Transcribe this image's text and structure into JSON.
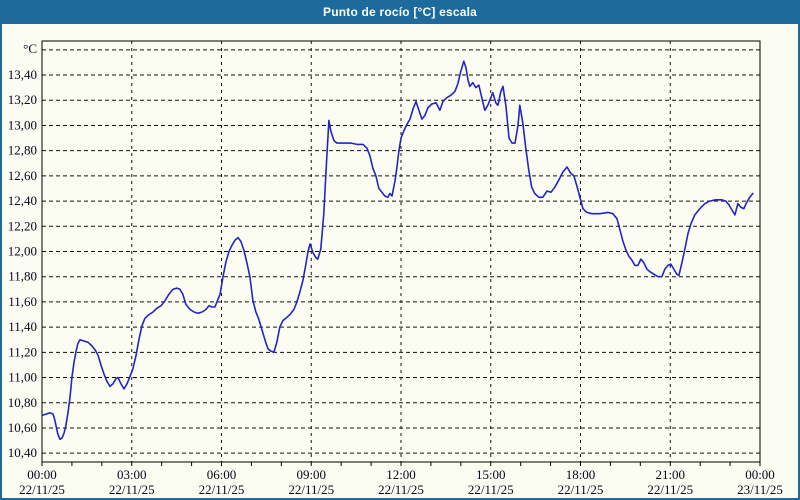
{
  "window": {
    "title": "Punto de rocío [°C] escala"
  },
  "colors": {
    "titlebar_bg": "#1d6b9d",
    "titlebar_text": "#ffffff",
    "page_bg": "#fcfdf2",
    "border": "#1d6b9d",
    "line": "#2424c3",
    "grid": "#111111",
    "axis": "#000000",
    "tick_label": "#05051e"
  },
  "chart_data": {
    "type": "line",
    "title": "Punto de rocío [°C] escala",
    "ylabel": "°C",
    "xlabel": "",
    "grid": true,
    "legend": false,
    "xlim_hours": [
      0,
      24
    ],
    "ylim": [
      10.33,
      13.67
    ],
    "y_tick_values": [
      10.4,
      10.6,
      10.8,
      11.0,
      11.2,
      11.4,
      11.6,
      11.8,
      12.0,
      12.2,
      12.4,
      12.6,
      12.8,
      13.0,
      13.2,
      13.4,
      13.6
    ],
    "y_tick_labels": [
      "10,40",
      "10,60",
      "10,80",
      "11,00",
      "11,20",
      "11,40",
      "11,60",
      "11,80",
      "12,00",
      "12,20",
      "12,40",
      "12,60",
      "12,80",
      "13,00",
      "13,20",
      "13,40",
      ""
    ],
    "x_ticks": [
      {
        "t": 0,
        "time": "00:00",
        "date": "22/11/25"
      },
      {
        "t": 3,
        "time": "03:00",
        "date": "22/11/25"
      },
      {
        "t": 6,
        "time": "06:00",
        "date": "22/11/25"
      },
      {
        "t": 9,
        "time": "09:00",
        "date": "22/11/25"
      },
      {
        "t": 12,
        "time": "12:00",
        "date": "22/11/25"
      },
      {
        "t": 15,
        "time": "15:00",
        "date": "22/11/25"
      },
      {
        "t": 18,
        "time": "18:00",
        "date": "22/11/25"
      },
      {
        "t": 21,
        "time": "21:00",
        "date": "22/11/25"
      },
      {
        "t": 24,
        "time": "00:00",
        "date": "23/11/25"
      }
    ],
    "x_minor_tick_every_hours": 1,
    "series": [
      {
        "name": "Punto de rocío [°C]",
        "points": [
          [
            0.0,
            10.7
          ],
          [
            0.13,
            10.71
          ],
          [
            0.27,
            10.72
          ],
          [
            0.37,
            10.71
          ],
          [
            0.43,
            10.66
          ],
          [
            0.53,
            10.55
          ],
          [
            0.6,
            10.51
          ],
          [
            0.67,
            10.52
          ],
          [
            0.74,
            10.56
          ],
          [
            0.8,
            10.62
          ],
          [
            0.87,
            10.72
          ],
          [
            0.94,
            10.85
          ],
          [
            1.0,
            11.0
          ],
          [
            1.07,
            11.12
          ],
          [
            1.14,
            11.21
          ],
          [
            1.2,
            11.27
          ],
          [
            1.27,
            11.3
          ],
          [
            1.4,
            11.29
          ],
          [
            1.54,
            11.28
          ],
          [
            1.67,
            11.25
          ],
          [
            1.77,
            11.22
          ],
          [
            1.87,
            11.18
          ],
          [
            1.97,
            11.1
          ],
          [
            2.07,
            11.03
          ],
          [
            2.17,
            10.97
          ],
          [
            2.27,
            10.93
          ],
          [
            2.37,
            10.95
          ],
          [
            2.47,
            10.99
          ],
          [
            2.54,
            11.0
          ],
          [
            2.64,
            10.95
          ],
          [
            2.74,
            10.91
          ],
          [
            2.84,
            10.95
          ],
          [
            2.94,
            11.01
          ],
          [
            3.04,
            11.07
          ],
          [
            3.14,
            11.17
          ],
          [
            3.24,
            11.3
          ],
          [
            3.34,
            11.41
          ],
          [
            3.44,
            11.47
          ],
          [
            3.58,
            11.5
          ],
          [
            3.71,
            11.52
          ],
          [
            3.84,
            11.55
          ],
          [
            3.98,
            11.57
          ],
          [
            4.11,
            11.61
          ],
          [
            4.24,
            11.66
          ],
          [
            4.38,
            11.7
          ],
          [
            4.51,
            11.71
          ],
          [
            4.61,
            11.7
          ],
          [
            4.71,
            11.66
          ],
          [
            4.81,
            11.58
          ],
          [
            4.95,
            11.54
          ],
          [
            5.08,
            11.52
          ],
          [
            5.21,
            11.51
          ],
          [
            5.35,
            11.52
          ],
          [
            5.48,
            11.54
          ],
          [
            5.58,
            11.57
          ],
          [
            5.68,
            11.56
          ],
          [
            5.78,
            11.56
          ],
          [
            5.88,
            11.62
          ],
          [
            5.95,
            11.66
          ],
          [
            6.05,
            11.8
          ],
          [
            6.15,
            11.92
          ],
          [
            6.25,
            12.0
          ],
          [
            6.35,
            12.05
          ],
          [
            6.45,
            12.09
          ],
          [
            6.55,
            12.11
          ],
          [
            6.65,
            12.08
          ],
          [
            6.75,
            12.01
          ],
          [
            6.85,
            11.91
          ],
          [
            6.95,
            11.8
          ],
          [
            7.05,
            11.61
          ],
          [
            7.15,
            11.52
          ],
          [
            7.25,
            11.46
          ],
          [
            7.35,
            11.38
          ],
          [
            7.45,
            11.3
          ],
          [
            7.55,
            11.23
          ],
          [
            7.65,
            11.21
          ],
          [
            7.75,
            11.2
          ],
          [
            7.85,
            11.28
          ],
          [
            7.95,
            11.4
          ],
          [
            8.05,
            11.45
          ],
          [
            8.15,
            11.47
          ],
          [
            8.29,
            11.5
          ],
          [
            8.42,
            11.54
          ],
          [
            8.52,
            11.6
          ],
          [
            8.62,
            11.68
          ],
          [
            8.72,
            11.77
          ],
          [
            8.82,
            11.9
          ],
          [
            8.89,
            12.0
          ],
          [
            8.96,
            12.06
          ],
          [
            9.06,
            11.99
          ],
          [
            9.16,
            11.95
          ],
          [
            9.22,
            11.94
          ],
          [
            9.32,
            12.02
          ],
          [
            9.42,
            12.3
          ],
          [
            9.52,
            12.75
          ],
          [
            9.59,
            13.04
          ],
          [
            9.66,
            12.95
          ],
          [
            9.76,
            12.88
          ],
          [
            9.86,
            12.86
          ],
          [
            10.0,
            12.86
          ],
          [
            10.13,
            12.86
          ],
          [
            10.33,
            12.86
          ],
          [
            10.53,
            12.85
          ],
          [
            10.73,
            12.85
          ],
          [
            10.86,
            12.82
          ],
          [
            10.96,
            12.76
          ],
          [
            11.06,
            12.66
          ],
          [
            11.16,
            12.6
          ],
          [
            11.26,
            12.5
          ],
          [
            11.36,
            12.47
          ],
          [
            11.46,
            12.44
          ],
          [
            11.56,
            12.43
          ],
          [
            11.63,
            12.46
          ],
          [
            11.7,
            12.44
          ],
          [
            11.8,
            12.56
          ],
          [
            11.86,
            12.66
          ],
          [
            11.93,
            12.8
          ],
          [
            12.0,
            12.9
          ],
          [
            12.1,
            12.96
          ],
          [
            12.2,
            13.01
          ],
          [
            12.3,
            13.05
          ],
          [
            12.4,
            13.13
          ],
          [
            12.5,
            13.19
          ],
          [
            12.6,
            13.12
          ],
          [
            12.7,
            13.05
          ],
          [
            12.8,
            13.08
          ],
          [
            12.9,
            13.14
          ],
          [
            13.03,
            13.17
          ],
          [
            13.17,
            13.18
          ],
          [
            13.3,
            13.12
          ],
          [
            13.4,
            13.19
          ],
          [
            13.53,
            13.22
          ],
          [
            13.67,
            13.24
          ],
          [
            13.8,
            13.27
          ],
          [
            13.9,
            13.33
          ],
          [
            14.0,
            13.43
          ],
          [
            14.1,
            13.51
          ],
          [
            14.17,
            13.46
          ],
          [
            14.24,
            13.36
          ],
          [
            14.3,
            13.31
          ],
          [
            14.4,
            13.34
          ],
          [
            14.5,
            13.3
          ],
          [
            14.6,
            13.32
          ],
          [
            14.7,
            13.22
          ],
          [
            14.8,
            13.12
          ],
          [
            14.9,
            13.16
          ],
          [
            15.0,
            13.22
          ],
          [
            15.07,
            13.26
          ],
          [
            15.17,
            13.18
          ],
          [
            15.24,
            13.16
          ],
          [
            15.34,
            13.27
          ],
          [
            15.41,
            13.31
          ],
          [
            15.51,
            13.15
          ],
          [
            15.61,
            12.9
          ],
          [
            15.71,
            12.86
          ],
          [
            15.81,
            12.86
          ],
          [
            15.91,
            13.0
          ],
          [
            15.97,
            13.16
          ],
          [
            16.07,
            13.02
          ],
          [
            16.17,
            12.82
          ],
          [
            16.27,
            12.65
          ],
          [
            16.37,
            12.51
          ],
          [
            16.47,
            12.46
          ],
          [
            16.61,
            12.43
          ],
          [
            16.74,
            12.43
          ],
          [
            16.88,
            12.48
          ],
          [
            17.01,
            12.47
          ],
          [
            17.14,
            12.51
          ],
          [
            17.28,
            12.57
          ],
          [
            17.41,
            12.63
          ],
          [
            17.55,
            12.67
          ],
          [
            17.68,
            12.62
          ],
          [
            17.78,
            12.6
          ],
          [
            17.88,
            12.52
          ],
          [
            17.98,
            12.43
          ],
          [
            18.08,
            12.34
          ],
          [
            18.21,
            12.31
          ],
          [
            18.38,
            12.3
          ],
          [
            18.65,
            12.3
          ],
          [
            18.92,
            12.31
          ],
          [
            19.08,
            12.3
          ],
          [
            19.22,
            12.26
          ],
          [
            19.32,
            12.17
          ],
          [
            19.42,
            12.08
          ],
          [
            19.52,
            12.01
          ],
          [
            19.62,
            11.96
          ],
          [
            19.72,
            11.93
          ],
          [
            19.82,
            11.89
          ],
          [
            19.92,
            11.89
          ],
          [
            20.02,
            11.94
          ],
          [
            20.12,
            11.91
          ],
          [
            20.22,
            11.86
          ],
          [
            20.32,
            11.84
          ],
          [
            20.45,
            11.82
          ],
          [
            20.59,
            11.8
          ],
          [
            20.72,
            11.8
          ],
          [
            20.82,
            11.86
          ],
          [
            20.92,
            11.89
          ],
          [
            21.02,
            11.9
          ],
          [
            21.12,
            11.86
          ],
          [
            21.22,
            11.82
          ],
          [
            21.29,
            11.81
          ],
          [
            21.39,
            11.91
          ],
          [
            21.49,
            12.02
          ],
          [
            21.59,
            12.14
          ],
          [
            21.69,
            12.22
          ],
          [
            21.82,
            12.29
          ],
          [
            21.99,
            12.34
          ],
          [
            22.16,
            12.38
          ],
          [
            22.32,
            12.4
          ],
          [
            22.52,
            12.41
          ],
          [
            22.72,
            12.41
          ],
          [
            22.86,
            12.4
          ],
          [
            22.96,
            12.37
          ],
          [
            23.06,
            12.33
          ],
          [
            23.16,
            12.29
          ],
          [
            23.26,
            12.38
          ],
          [
            23.36,
            12.35
          ],
          [
            23.46,
            12.34
          ],
          [
            23.56,
            12.39
          ],
          [
            23.66,
            12.43
          ],
          [
            23.76,
            12.46
          ]
        ]
      }
    ]
  }
}
